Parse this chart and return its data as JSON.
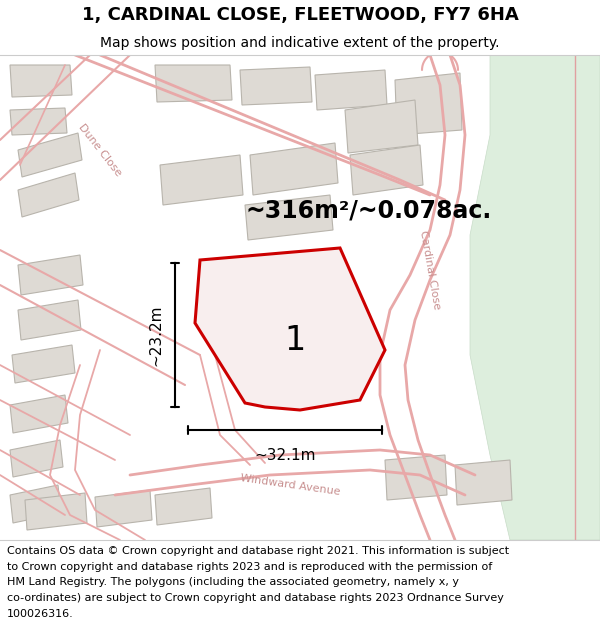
{
  "title": "1, CARDINAL CLOSE, FLEETWOOD, FY7 6HA",
  "subtitle": "Map shows position and indicative extent of the property.",
  "area_label": "~316m²/~0.078ac.",
  "plot_number": "1",
  "dim_width": "~32.1m",
  "dim_height": "~23.2m",
  "footer_text": "Contains OS data © Crown copyright and database right 2021. This information is subject to Crown copyright and database rights 2023 and is reproduced with the permission of HM Land Registry. The polygons (including the associated geometry, namely x, y co-ordinates) are subject to Crown copyright and database rights 2023 Ordnance Survey 100026316.",
  "map_bg": "#f7f4f0",
  "road_color": "#e8a8a8",
  "road_lw": 1.5,
  "building_color": "#dedad4",
  "building_edge": "#b8b4ac",
  "plot_fill": "#f8eeee",
  "plot_edge": "#cc0000",
  "plot_lw": 2.2,
  "green_fill": "#ddeedd",
  "green_edge": "#c8dcc8",
  "title_fontsize": 13,
  "subtitle_fontsize": 10,
  "footer_fontsize": 8,
  "area_fontsize": 17,
  "dim_fontsize": 11,
  "street_fontsize": 8,
  "street_color": "#c89090"
}
